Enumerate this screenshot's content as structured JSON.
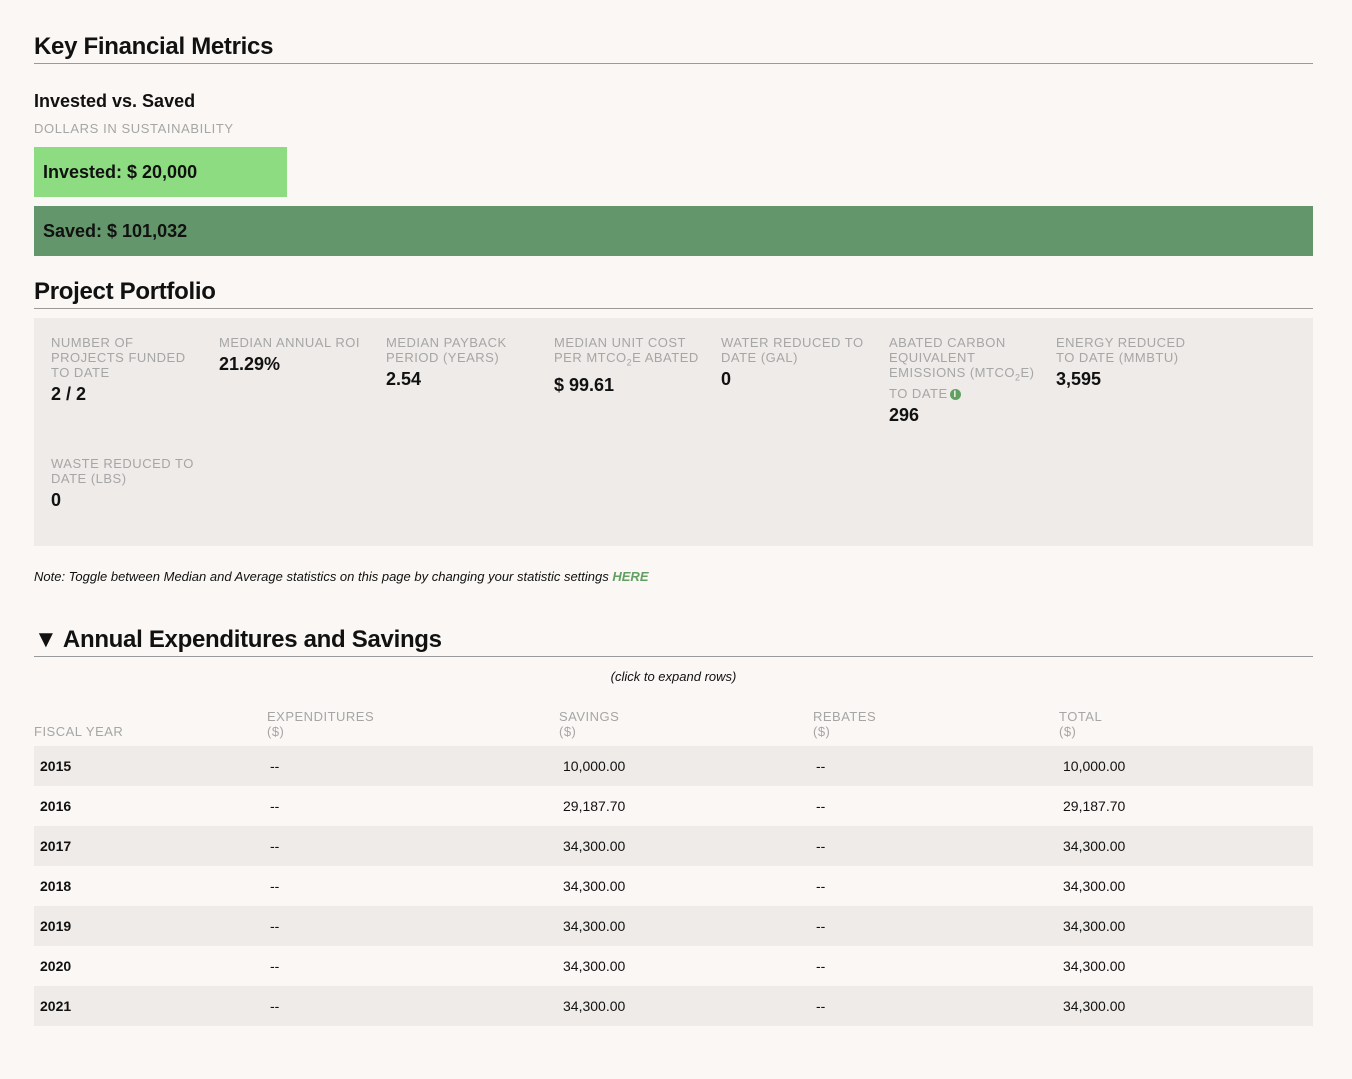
{
  "key_financial_metrics": {
    "title": "Key Financial Metrics",
    "invested_vs_saved": {
      "title": "Invested vs. Saved",
      "subtitle": "DOLLARS IN SUSTAINABILITY",
      "invested_label": "Invested: $ 20,000",
      "saved_label": "Saved: $ 101,032",
      "invested_value": 20000,
      "saved_value": 101032
    }
  },
  "project_portfolio": {
    "title": "Project Portfolio",
    "stats": [
      {
        "label": "NUMBER OF PROJECTS FUNDED TO DATE",
        "value": "2 / 2"
      },
      {
        "label": "MEDIAN ANNUAL ROI",
        "value": "21.29%"
      },
      {
        "label": "MEDIAN PAYBACK PERIOD (YEARS)",
        "value": "2.54"
      },
      {
        "label_pre": "MEDIAN UNIT COST PER MTCO",
        "label_sub": "2",
        "label_post": "E ABATED",
        "value": "$ 99.61"
      },
      {
        "label": "WATER REDUCED TO DATE (GAL)",
        "value": "0"
      },
      {
        "label_pre": "ABATED CARBON EQUIVALENT EMISSIONS (MTCO",
        "label_sub": "2",
        "label_post": "E) TO DATE",
        "value": "296"
      },
      {
        "label": "ENERGY REDUCED TO DATE (MMBTU)",
        "value": "3,595"
      },
      {
        "label": "WASTE REDUCED TO DATE (LBS)",
        "value": "0"
      }
    ],
    "note_text": "Note: Toggle between Median and Average statistics on this page by changing your statistic settings ",
    "note_link": "HERE"
  },
  "annual": {
    "title": "▼ Annual Expenditures and Savings",
    "hint": "(click to expand rows)",
    "headers": {
      "fiscal_year": "FISCAL YEAR",
      "expenditures": "EXPENDITURES",
      "savings": "SAVINGS",
      "rebates": "REBATES",
      "total": "TOTAL",
      "unit": "($)"
    },
    "rows": [
      {
        "year": "2015",
        "expenditures": "--",
        "savings": "10,000.00",
        "rebates": "--",
        "total": "10,000.00"
      },
      {
        "year": "2016",
        "expenditures": "--",
        "savings": "29,187.70",
        "rebates": "--",
        "total": "29,187.70"
      },
      {
        "year": "2017",
        "expenditures": "--",
        "savings": "34,300.00",
        "rebates": "--",
        "total": "34,300.00"
      },
      {
        "year": "2018",
        "expenditures": "--",
        "savings": "34,300.00",
        "rebates": "--",
        "total": "34,300.00"
      },
      {
        "year": "2019",
        "expenditures": "--",
        "savings": "34,300.00",
        "rebates": "--",
        "total": "34,300.00"
      },
      {
        "year": "2020",
        "expenditures": "--",
        "savings": "34,300.00",
        "rebates": "--",
        "total": "34,300.00"
      },
      {
        "year": "2021",
        "expenditures": "--",
        "savings": "34,300.00",
        "rebates": "--",
        "total": "34,300.00"
      }
    ]
  }
}
